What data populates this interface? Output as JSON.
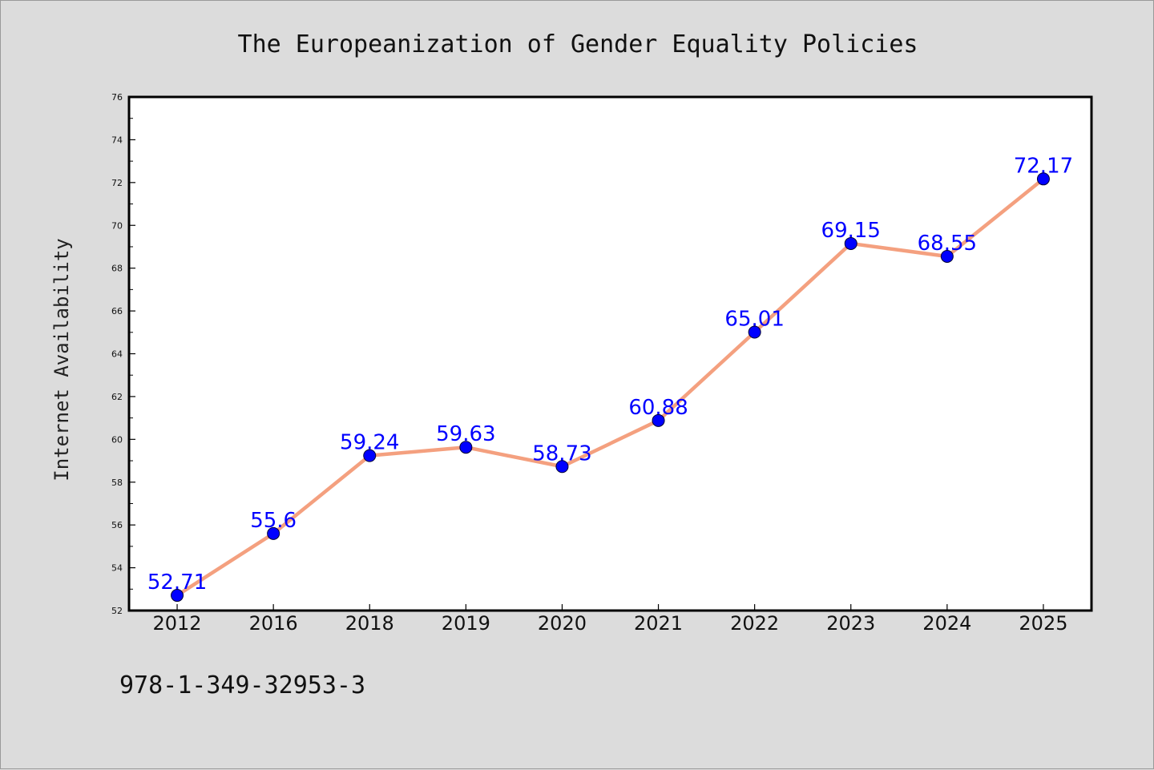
{
  "chart_data": {
    "type": "line",
    "title": "The Europeanization of Gender Equality Policies",
    "xlabel": "",
    "ylabel": "Internet Availability",
    "categories": [
      "2012",
      "2016",
      "2018",
      "2019",
      "2020",
      "2021",
      "2022",
      "2023",
      "2024",
      "2025"
    ],
    "series": [
      {
        "values": [
          52.71,
          55.6,
          59.24,
          59.63,
          58.73,
          60.88,
          65.01,
          69.15,
          68.55,
          72.17
        ],
        "labels": [
          "52.71",
          "55.6",
          "59.24",
          "59.63",
          "58.73",
          "60.88",
          "65.01",
          "69.15",
          "68.55",
          "72.17"
        ],
        "line_color": "#f4a07f",
        "marker_color": "#0000ff",
        "label_color": "#0000ff"
      }
    ],
    "ylim": [
      52,
      76
    ],
    "yticks": [
      "52",
      "54",
      "56",
      "58",
      "60",
      "62",
      "64",
      "66",
      "68",
      "70",
      "72",
      "74",
      "76"
    ],
    "grid": false,
    "legend": "none",
    "background_color": "#dcdcdc",
    "plot_background_color": "#ffffff"
  },
  "footer": {
    "isbn": "978-1-349-32953-3"
  }
}
